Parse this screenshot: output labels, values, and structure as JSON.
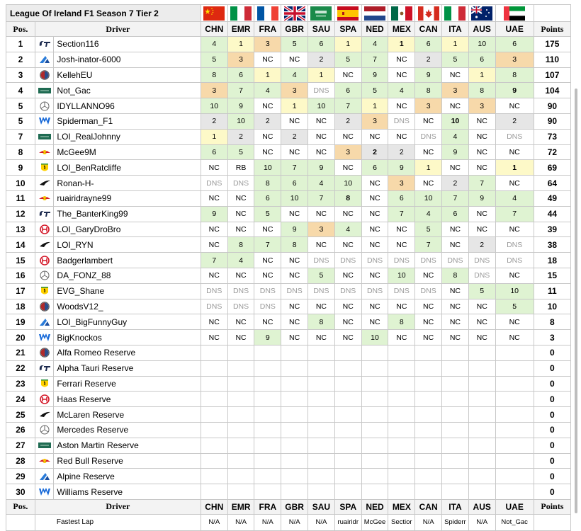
{
  "title": "League Of Ireland F1 Season 7 Tier 2",
  "headers": {
    "pos": "Pos.",
    "driver": "Driver",
    "points": "Points"
  },
  "races": [
    {
      "code": "CHN",
      "flag": "china-flag"
    },
    {
      "code": "EMR",
      "flag": "italy-flag"
    },
    {
      "code": "FRA",
      "flag": "france-flag"
    },
    {
      "code": "GBR",
      "flag": "uk-flag"
    },
    {
      "code": "SAU",
      "flag": "saudi-flag"
    },
    {
      "code": "SPA",
      "flag": "spain-flag"
    },
    {
      "code": "NED",
      "flag": "netherlands-flag"
    },
    {
      "code": "MEX",
      "flag": "mexico-flag"
    },
    {
      "code": "CAN",
      "flag": "canada-flag"
    },
    {
      "code": "ITA",
      "flag": "italy-flag"
    },
    {
      "code": "AUS",
      "flag": "australia-flag"
    },
    {
      "code": "UAE",
      "flag": "uae-flag"
    }
  ],
  "rows": [
    {
      "pos": "1",
      "team": "alphatauri",
      "driver": "Section116",
      "results": [
        "4",
        "1",
        "3",
        "5",
        "6",
        "1",
        "4",
        "1",
        "6",
        "1",
        "10",
        "6"
      ],
      "points": "175"
    },
    {
      "pos": "2",
      "team": "alpine",
      "driver": "Josh-inator-6000",
      "results": [
        "5",
        "3",
        "NC",
        "NC",
        "2",
        "5",
        "7",
        "NC",
        "2",
        "5",
        "6",
        "3"
      ],
      "points": "110"
    },
    {
      "pos": "3",
      "team": "alfaromeo",
      "driver": "KellehEU",
      "results": [
        "8",
        "6",
        "1",
        "4",
        "1",
        "NC",
        "9",
        "NC",
        "9",
        "NC",
        "1",
        "8"
      ],
      "points": "107"
    },
    {
      "pos": "4",
      "team": "astonmartin",
      "driver": "Not_Gac",
      "results": [
        "3",
        "7",
        "4",
        "3",
        "DNS",
        "6",
        "5",
        "4",
        "8",
        "3",
        "8",
        "9"
      ],
      "points": "104"
    },
    {
      "pos": "5",
      "team": "mercedes",
      "driver": "IDYLLANNO96",
      "results": [
        "10",
        "9",
        "NC",
        "1",
        "10",
        "7",
        "1",
        "NC",
        "3",
        "NC",
        "3",
        "NC"
      ],
      "points": "90"
    },
    {
      "pos": "5",
      "team": "williams",
      "driver": "Spiderman_F1",
      "results": [
        "2",
        "10",
        "2",
        "NC",
        "NC",
        "2",
        "3",
        "DNS",
        "NC",
        "10",
        "NC",
        "2"
      ],
      "points": "90"
    },
    {
      "pos": "7",
      "team": "astonmartin",
      "driver": "LOI_RealJohnny",
      "results": [
        "1",
        "2",
        "NC",
        "2",
        "NC",
        "NC",
        "NC",
        "NC",
        "DNS",
        "4",
        "NC",
        "DNS"
      ],
      "points": "73"
    },
    {
      "pos": "8",
      "team": "redbull",
      "driver": "McGee9M",
      "results": [
        "6",
        "5",
        "NC",
        "NC",
        "NC",
        "3",
        "2",
        "2",
        "NC",
        "9",
        "NC",
        "NC"
      ],
      "points": "72"
    },
    {
      "pos": "9",
      "team": "ferrari",
      "driver": "LOI_BenRatcliffe",
      "results": [
        "NC",
        "RB",
        "10",
        "7",
        "9",
        "NC",
        "6",
        "9",
        "1",
        "NC",
        "NC",
        "1"
      ],
      "points": "69"
    },
    {
      "pos": "10",
      "team": "mclaren",
      "driver": "Ronan-H-",
      "results": [
        "DNS",
        "DNS",
        "8",
        "6",
        "4",
        "10",
        "NC",
        "3",
        "NC",
        "2",
        "7",
        "NC"
      ],
      "points": "64"
    },
    {
      "pos": "11",
      "team": "redbull",
      "driver": "ruairidrayne99",
      "results": [
        "NC",
        "NC",
        "6",
        "10",
        "7",
        "8",
        "NC",
        "6",
        "10",
        "7",
        "9",
        "4"
      ],
      "points": "49"
    },
    {
      "pos": "12",
      "team": "alphatauri",
      "driver": "The_BanterKing99",
      "results": [
        "9",
        "NC",
        "5",
        "NC",
        "NC",
        "NC",
        "NC",
        "7",
        "4",
        "6",
        "NC",
        "7"
      ],
      "points": "44"
    },
    {
      "pos": "13",
      "team": "haas",
      "driver": "LOI_GaryDroBro",
      "results": [
        "NC",
        "NC",
        "NC",
        "9",
        "3",
        "4",
        "NC",
        "NC",
        "5",
        "NC",
        "NC",
        "NC"
      ],
      "points": "39"
    },
    {
      "pos": "14",
      "team": "mclaren",
      "driver": "LOI_RYN",
      "results": [
        "NC",
        "8",
        "7",
        "8",
        "NC",
        "NC",
        "NC",
        "NC",
        "7",
        "NC",
        "2",
        "DNS"
      ],
      "points": "38"
    },
    {
      "pos": "15",
      "team": "haas",
      "driver": "Badgerlambert",
      "results": [
        "7",
        "4",
        "NC",
        "NC",
        "DNS",
        "DNS",
        "DNS",
        "DNS",
        "DNS",
        "DNS",
        "DNS",
        "DNS"
      ],
      "points": "18"
    },
    {
      "pos": "16",
      "team": "mercedes",
      "driver": "DA_FONZ_88",
      "results": [
        "NC",
        "NC",
        "NC",
        "NC",
        "5",
        "NC",
        "NC",
        "10",
        "NC",
        "8",
        "DNS",
        "NC"
      ],
      "points": "15"
    },
    {
      "pos": "17",
      "team": "ferrari",
      "driver": "EVG_Shane",
      "results": [
        "DNS",
        "DNS",
        "DNS",
        "DNS",
        "DNS",
        "DNS",
        "DNS",
        "DNS",
        "DNS",
        "NC",
        "5",
        "10"
      ],
      "points": "11"
    },
    {
      "pos": "18",
      "team": "alfaromeo",
      "driver": "WoodsV12_",
      "results": [
        "DNS",
        "DNS",
        "DNS",
        "NC",
        "NC",
        "NC",
        "NC",
        "NC",
        "NC",
        "NC",
        "NC",
        "5"
      ],
      "points": "10"
    },
    {
      "pos": "19",
      "team": "alpine",
      "driver": "LOI_BigFunnyGuy",
      "results": [
        "NC",
        "NC",
        "NC",
        "NC",
        "8",
        "NC",
        "NC",
        "8",
        "NC",
        "NC",
        "NC",
        "NC"
      ],
      "points": "8"
    },
    {
      "pos": "20",
      "team": "williams",
      "driver": "BigKnockos",
      "results": [
        "NC",
        "NC",
        "9",
        "NC",
        "NC",
        "NC",
        "10",
        "NC",
        "NC",
        "NC",
        "NC",
        "NC"
      ],
      "points": "3"
    },
    {
      "pos": "21",
      "team": "alfaromeo",
      "driver": "Alfa Romeo Reserve",
      "results": [
        "",
        "",
        "",
        "",
        "",
        "",
        "",
        "",
        "",
        "",
        "",
        ""
      ],
      "points": "0"
    },
    {
      "pos": "22",
      "team": "alphatauri",
      "driver": "Alpha Tauri Reserve",
      "results": [
        "",
        "",
        "",
        "",
        "",
        "",
        "",
        "",
        "",
        "",
        "",
        ""
      ],
      "points": "0"
    },
    {
      "pos": "23",
      "team": "ferrari",
      "driver": "Ferrari Reserve",
      "results": [
        "",
        "",
        "",
        "",
        "",
        "",
        "",
        "",
        "",
        "",
        "",
        ""
      ],
      "points": "0"
    },
    {
      "pos": "24",
      "team": "haas",
      "driver": "Haas Reserve",
      "results": [
        "",
        "",
        "",
        "",
        "",
        "",
        "",
        "",
        "",
        "",
        "",
        ""
      ],
      "points": "0"
    },
    {
      "pos": "25",
      "team": "mclaren",
      "driver": "McLaren Reserve",
      "results": [
        "",
        "",
        "",
        "",
        "",
        "",
        "",
        "",
        "",
        "",
        "",
        ""
      ],
      "points": "0"
    },
    {
      "pos": "26",
      "team": "mercedes",
      "driver": "Mercedes Reserve",
      "results": [
        "",
        "",
        "",
        "",
        "",
        "",
        "",
        "",
        "",
        "",
        "",
        ""
      ],
      "points": "0"
    },
    {
      "pos": "27",
      "team": "astonmartin",
      "driver": "Aston Martin Reserve",
      "results": [
        "",
        "",
        "",
        "",
        "",
        "",
        "",
        "",
        "",
        "",
        "",
        ""
      ],
      "points": "0"
    },
    {
      "pos": "28",
      "team": "redbull",
      "driver": "Red Bull Reserve",
      "results": [
        "",
        "",
        "",
        "",
        "",
        "",
        "",
        "",
        "",
        "",
        "",
        ""
      ],
      "points": "0"
    },
    {
      "pos": "29",
      "team": "alpine",
      "driver": "Alpine Reserve",
      "results": [
        "",
        "",
        "",
        "",
        "",
        "",
        "",
        "",
        "",
        "",
        "",
        ""
      ],
      "points": "0"
    },
    {
      "pos": "30",
      "team": "williams",
      "driver": "Williams Reserve",
      "results": [
        "",
        "",
        "",
        "",
        "",
        "",
        "",
        "",
        "",
        "",
        "",
        ""
      ],
      "points": "0"
    }
  ],
  "fastest_lap": {
    "label": "Fastest Lap",
    "values": [
      "N/A",
      "N/A",
      "N/A",
      "N/A",
      "N/A",
      "ruairidr",
      "McGee",
      "Sectior",
      "N/A",
      "Spiderr",
      "N/A",
      "Not_Gac"
    ]
  },
  "colors": {
    "win": "#fdf9c8",
    "podium": "#f7d9aa",
    "points": "#dff3d2",
    "retired": "#e6e6e6",
    "dns": "#9a9a9a"
  }
}
